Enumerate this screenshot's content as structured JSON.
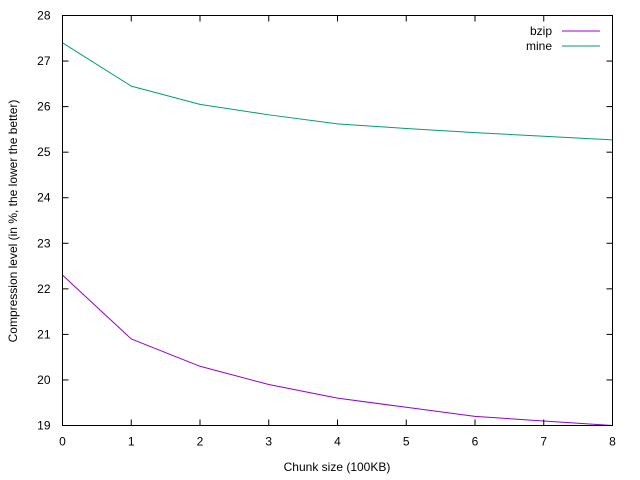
{
  "chart_data": {
    "type": "line",
    "title": "",
    "xlabel": "Chunk size (100KB)",
    "ylabel": "Compression level (in %, the lower the better)",
    "xlim": [
      0,
      8
    ],
    "ylim": [
      19,
      28
    ],
    "x_ticks": [
      "0",
      "1",
      "2",
      "3",
      "4",
      "5",
      "6",
      "7",
      "8"
    ],
    "y_ticks": [
      "19",
      "20",
      "21",
      "22",
      "23",
      "24",
      "25",
      "26",
      "27",
      "28"
    ],
    "grid": false,
    "legend_position": "top-right",
    "series": [
      {
        "name": "bzip",
        "color": "#9400d3",
        "x": [
          0,
          1,
          2,
          3,
          4,
          5,
          6,
          7,
          8
        ],
        "y": [
          22.3,
          20.9,
          20.3,
          19.9,
          19.6,
          19.4,
          19.2,
          19.1,
          19.0
        ]
      },
      {
        "name": "mine",
        "color": "#009e73",
        "x": [
          0,
          1,
          2,
          3,
          4,
          5,
          6,
          7,
          8
        ],
        "y": [
          27.4,
          26.45,
          26.05,
          25.82,
          25.62,
          25.52,
          25.43,
          25.35,
          25.27
        ]
      }
    ]
  }
}
